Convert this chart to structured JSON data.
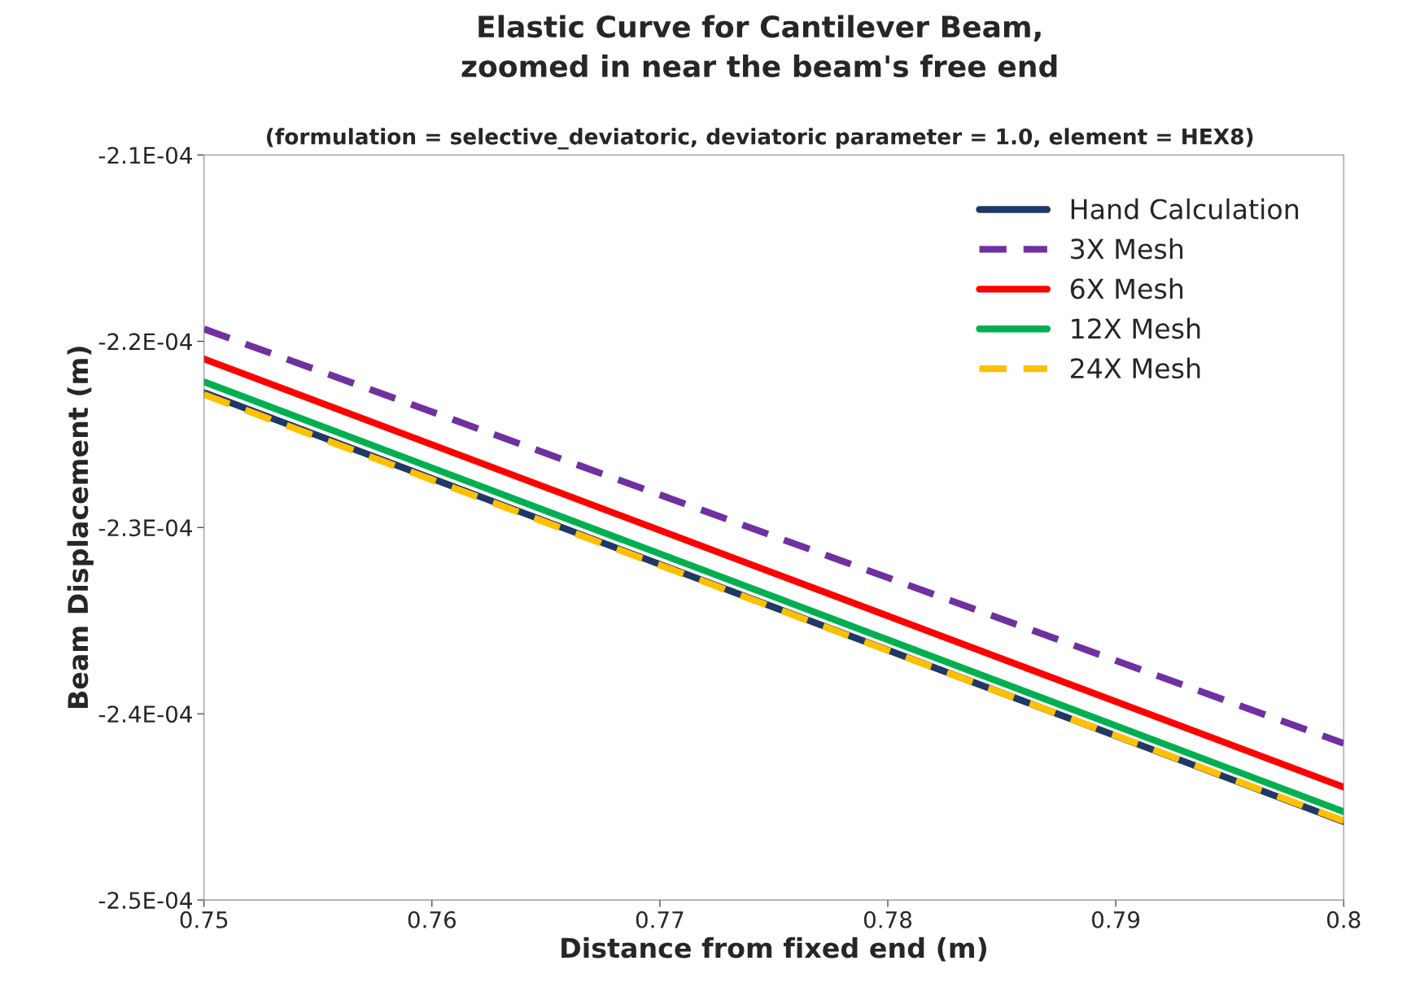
{
  "chart_data": {
    "type": "line",
    "title": "Elastic Curve for Cantilever Beam,\nzoomed in near the beam's free end",
    "subtitle": "(formulation = selective_deviatoric, deviatoric parameter = 1.0, element = HEX8)",
    "xlabel": "Distance from fixed end (m)",
    "ylabel": "Beam Displacement (m)",
    "x": [
      0.75,
      0.775,
      0.8
    ],
    "series": [
      {
        "name": "Hand Calculation",
        "color": "#1f3864",
        "line_style": "solid",
        "values": [
          -0.00022276,
          -0.00023428,
          -0.00024579
        ]
      },
      {
        "name": "3X Mesh",
        "color": "#7030a0",
        "line_style": "dashed",
        "values": [
          -0.00021934,
          -0.00023047,
          -0.00024159
        ]
      },
      {
        "name": "6X Mesh",
        "color": "#ff0000",
        "line_style": "solid",
        "values": [
          -0.00022095,
          -0.00023245,
          -0.00024394
        ]
      },
      {
        "name": "12X Mesh",
        "color": "#00b050",
        "line_style": "solid",
        "values": [
          -0.00022218,
          -0.00023372,
          -0.00024526
        ]
      },
      {
        "name": "24X Mesh",
        "color": "#ffc000",
        "line_style": "dashed",
        "values": [
          -0.00022286,
          -0.00023431,
          -0.00024575
        ]
      }
    ],
    "xlim": [
      0.75,
      0.8
    ],
    "xticks": [
      0.75,
      0.76,
      0.77,
      0.78,
      0.79,
      0.8
    ],
    "ylim": [
      -0.00025,
      -0.00021
    ],
    "yticks": [
      {
        "value": -0.00025,
        "label": "-2.5E-04"
      },
      {
        "value": -0.00024,
        "label": "-2.4E-04"
      },
      {
        "value": -0.00023,
        "label": "-2.3E-04"
      },
      {
        "value": -0.00022,
        "label": "-2.2E-04"
      },
      {
        "value": -0.00021,
        "label": "-2.1E-04"
      }
    ],
    "grid": false,
    "legend": "top right",
    "marker": "none"
  }
}
